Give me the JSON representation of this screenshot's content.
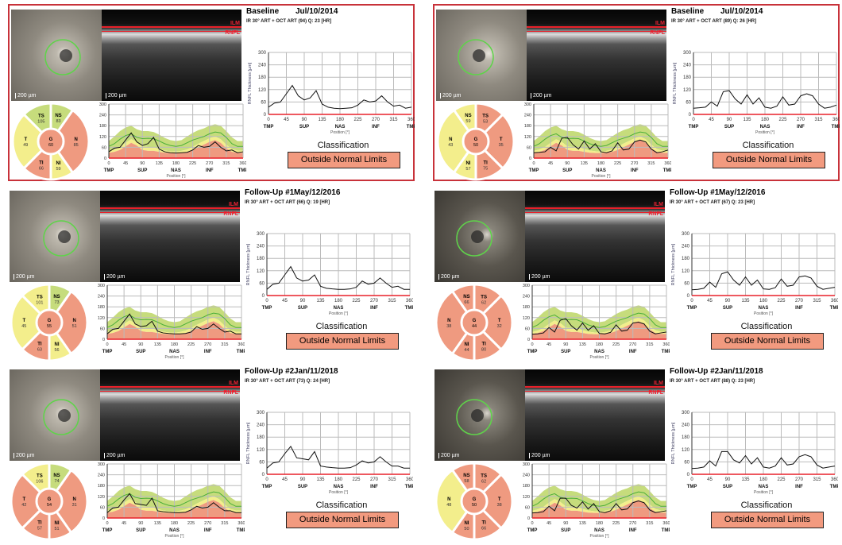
{
  "common": {
    "scale_label": "200 µm",
    "ilm_label": "ILM",
    "rnfl_label": "RNFL",
    "classification_label": "Classification"
  },
  "colors": {
    "green": "#c6dc7c",
    "yellow": "#f3ee8c",
    "red": "#ef9a80",
    "border": "#c8323a",
    "mean_line": "#4caf3a"
  },
  "panels": [
    {
      "eye": "left",
      "title": "Baseline",
      "date": "Jul/10/2014",
      "info": "IR 30° ART + OCT ART (94) Q: 23 [HR]",
      "classification": "Outside Normal Limits",
      "sectors": {
        "TS": {
          "v": "105",
          "c": "green"
        },
        "NS": {
          "v": "83",
          "c": "green"
        },
        "T": {
          "v": "49",
          "c": "yellow"
        },
        "N": {
          "v": "85",
          "c": "red"
        },
        "G": {
          "v": "60",
          "c": "red"
        },
        "TI": {
          "v": "66",
          "c": "red"
        },
        "NI": {
          "v": "59",
          "c": "yellow"
        }
      }
    },
    {
      "eye": "right",
      "title": "Baseline",
      "date": "Jul/10/2014",
      "info": "IR 30° ART + OCT ART (89) Q: 26 [HR]",
      "classification": "Outside Normal Limits",
      "sectors": {
        "NS": {
          "v": "59",
          "c": "yellow"
        },
        "TS": {
          "v": "53",
          "c": "red"
        },
        "N": {
          "v": "43",
          "c": "yellow"
        },
        "T": {
          "v": "35",
          "c": "red"
        },
        "G": {
          "v": "50",
          "c": "red"
        },
        "NI": {
          "v": "57",
          "c": "yellow"
        },
        "TI": {
          "v": "75",
          "c": "red"
        }
      }
    },
    {
      "eye": "left",
      "title": "Follow-Up #1",
      "date": "May/12/2016",
      "info": "IR 30° ART + OCT ART (66) Q: 19 [HR]",
      "classification": "Outside Normal Limits",
      "sectors": {
        "TS": {
          "v": "101",
          "c": "yellow"
        },
        "NS": {
          "v": "73",
          "c": "green"
        },
        "T": {
          "v": "45",
          "c": "yellow"
        },
        "N": {
          "v": "51",
          "c": "red"
        },
        "G": {
          "v": "55",
          "c": "red"
        },
        "TI": {
          "v": "63",
          "c": "red"
        },
        "NI": {
          "v": "56",
          "c": "yellow"
        }
      }
    },
    {
      "eye": "right",
      "title": "Follow-Up #1",
      "date": "May/12/2016",
      "info": "IR 30° ART + OCT ART (67) Q: 23 [HR]",
      "classification": "Outside Normal Limits",
      "sectors": {
        "NS": {
          "v": "66",
          "c": "red"
        },
        "TS": {
          "v": "62",
          "c": "red"
        },
        "N": {
          "v": "38",
          "c": "red"
        },
        "T": {
          "v": "32",
          "c": "red"
        },
        "G": {
          "v": "44",
          "c": "red"
        },
        "NI": {
          "v": "44",
          "c": "red"
        },
        "TI": {
          "v": "80",
          "c": "red"
        }
      }
    },
    {
      "eye": "left",
      "title": "Follow-Up #2",
      "date": "Jan/11/2018",
      "info": "IR 30° ART + OCT ART (73) Q: 24 [HR]",
      "classification": "Outside Normal Limits",
      "sectors": {
        "TS": {
          "v": "106",
          "c": "yellow"
        },
        "NS": {
          "v": "74",
          "c": "green"
        },
        "T": {
          "v": "42",
          "c": "red"
        },
        "N": {
          "v": "31",
          "c": "red"
        },
        "G": {
          "v": "54",
          "c": "red"
        },
        "TI": {
          "v": "57",
          "c": "red"
        },
        "NI": {
          "v": "51",
          "c": "red"
        }
      }
    },
    {
      "eye": "right",
      "title": "Follow-Up #2",
      "date": "Jan/11/2018",
      "info": "IR 30° ART + OCT ART (88) Q: 23 [HR]",
      "classification": "Outside Normal Limits",
      "sectors": {
        "NS": {
          "v": "58",
          "c": "red"
        },
        "TS": {
          "v": "62",
          "c": "red"
        },
        "N": {
          "v": "48",
          "c": "yellow"
        },
        "T": {
          "v": "38",
          "c": "red"
        },
        "G": {
          "v": "50",
          "c": "red"
        },
        "NI": {
          "v": "50",
          "c": "red"
        },
        "TI": {
          "v": "66",
          "c": "red"
        }
      }
    }
  ],
  "chart_data": {
    "type": "line",
    "xlabel": "Position [°]",
    "ylabel": "RNFL Thickness [µm]",
    "xlim": [
      0,
      360
    ],
    "ylim": [
      0,
      300
    ],
    "x_ticks": [
      "0",
      "45",
      "90",
      "135",
      "180",
      "225",
      "270",
      "315",
      "360"
    ],
    "y_ticks": [
      "0",
      "60",
      "120",
      "180",
      "240",
      "300"
    ],
    "regions": [
      "TMP",
      "SUP",
      "NAS",
      "INF",
      "TMP"
    ],
    "grid": true,
    "x": [
      0,
      15,
      30,
      45,
      60,
      75,
      90,
      105,
      120,
      135,
      150,
      165,
      180,
      195,
      210,
      225,
      240,
      255,
      270,
      285,
      300,
      315,
      330,
      345,
      360
    ],
    "normative": {
      "p1": [
        30,
        35,
        45,
        65,
        85,
        70,
        45,
        40,
        40,
        35,
        30,
        28,
        28,
        30,
        35,
        45,
        60,
        75,
        90,
        100,
        85,
        55,
        35,
        30,
        30
      ],
      "p5": [
        40,
        48,
        62,
        85,
        105,
        90,
        65,
        62,
        60,
        50,
        42,
        38,
        36,
        40,
        48,
        62,
        80,
        95,
        110,
        120,
        105,
        75,
        50,
        42,
        40
      ],
      "mean": [
        65,
        80,
        105,
        125,
        135,
        115,
        108,
        110,
        108,
        95,
        80,
        70,
        65,
        70,
        85,
        100,
        110,
        120,
        135,
        145,
        140,
        115,
        80,
        65,
        65
      ],
      "p95": [
        95,
        120,
        150,
        170,
        180,
        160,
        150,
        150,
        145,
        130,
        112,
        100,
        95,
        100,
        120,
        140,
        155,
        165,
        180,
        188,
        180,
        150,
        115,
        95,
        95
      ]
    },
    "series": [
      {
        "values": [
          35,
          55,
          60,
          100,
          140,
          90,
          70,
          80,
          115,
          50,
          35,
          30,
          28,
          30,
          32,
          45,
          70,
          60,
          65,
          90,
          60,
          40,
          45,
          30,
          35
        ]
      },
      {
        "values": [
          30,
          32,
          35,
          60,
          40,
          110,
          115,
          75,
          50,
          95,
          50,
          80,
          35,
          30,
          40,
          85,
          45,
          50,
          90,
          100,
          90,
          50,
          30,
          35,
          45
        ]
      },
      {
        "values": [
          30,
          55,
          60,
          100,
          140,
          85,
          70,
          75,
          100,
          45,
          35,
          32,
          30,
          30,
          32,
          40,
          70,
          55,
          60,
          85,
          60,
          40,
          45,
          30,
          30
        ]
      },
      {
        "values": [
          28,
          30,
          35,
          65,
          40,
          105,
          115,
          75,
          50,
          90,
          50,
          75,
          32,
          30,
          38,
          80,
          45,
          50,
          90,
          95,
          85,
          45,
          30,
          35,
          40
        ]
      },
      {
        "values": [
          30,
          55,
          60,
          100,
          135,
          80,
          75,
          70,
          110,
          40,
          35,
          32,
          30,
          30,
          32,
          45,
          65,
          55,
          60,
          85,
          60,
          40,
          40,
          30,
          30
        ]
      },
      {
        "values": [
          28,
          30,
          35,
          65,
          40,
          110,
          110,
          70,
          55,
          90,
          50,
          80,
          35,
          30,
          40,
          80,
          45,
          50,
          85,
          95,
          85,
          45,
          30,
          35,
          40
        ]
      }
    ]
  }
}
